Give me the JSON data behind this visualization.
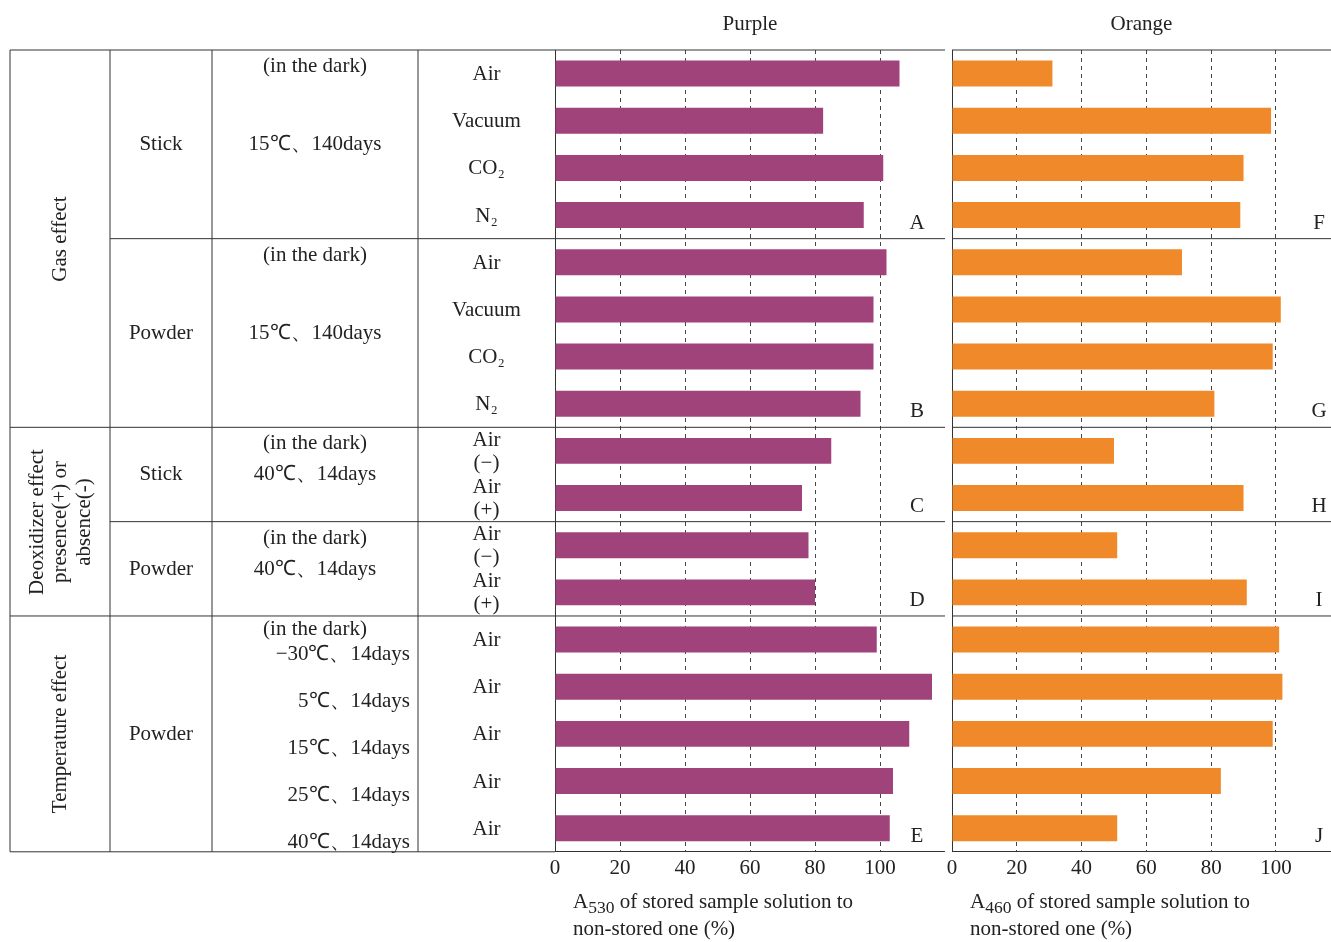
{
  "chart_data": [
    {
      "type": "bar",
      "orientation": "horizontal",
      "title": "Purple",
      "xlabel": "A$_{530}$ of stored sample solution to non-stored one (%)",
      "categories": [
        "Air",
        "Vacuum",
        "CO₂",
        "N₂",
        "Air",
        "Vacuum",
        "CO₂",
        "N₂",
        "Air\n(−)",
        "Air\n(+)",
        "Air\n(−)",
        "Air\n(+)",
        "Air",
        "Air",
        "Air",
        "Air",
        "Air"
      ],
      "values": [
        106,
        82.5,
        101,
        95,
        102,
        98,
        98,
        94,
        85,
        76,
        78,
        80,
        99,
        116,
        109,
        104,
        103
      ],
      "color": "#a0437a",
      "xlim": [
        0,
        120
      ],
      "xticks": [
        0,
        20,
        40,
        60,
        80,
        100
      ],
      "grid": "x",
      "annotations": [
        "Gas effect",
        "Deoxidizer effect presence(+) or absence(-)",
        "Temperature effect",
        "Stick",
        "Powder",
        "Stick",
        "Powder",
        "Powder",
        "(in the dark)",
        "15℃、140days",
        "(in the dark)",
        "15℃、140days",
        "(in the dark)",
        "40℃、14days",
        "(in the dark)",
        "40℃、14days",
        "(in the dark)",
        "−30℃、14days",
        "5℃、14days",
        "15℃、14days",
        "25℃、14days",
        "40℃、14days",
        "A",
        "B",
        "C",
        "D",
        "E"
      ]
    },
    {
      "type": "bar",
      "orientation": "horizontal",
      "title": "Orange",
      "xlabel": "A$_{460}$ of stored sample solution to non-stored one (%)",
      "categories": [
        null,
        null,
        null,
        null,
        null,
        null,
        null,
        null,
        null,
        null,
        null,
        null,
        null,
        null,
        null,
        null,
        null
      ],
      "values": [
        31,
        98.5,
        90,
        89,
        71,
        101.5,
        99,
        81,
        50,
        90,
        51,
        91,
        101,
        102,
        99,
        83,
        51
      ],
      "color": "#f0892a",
      "xlim": [
        0,
        117
      ],
      "xticks": [
        0,
        20,
        40,
        60,
        80,
        100
      ],
      "grid": "x",
      "annotations": [
        "F",
        "G",
        "H",
        "I",
        "J"
      ]
    }
  ]
}
